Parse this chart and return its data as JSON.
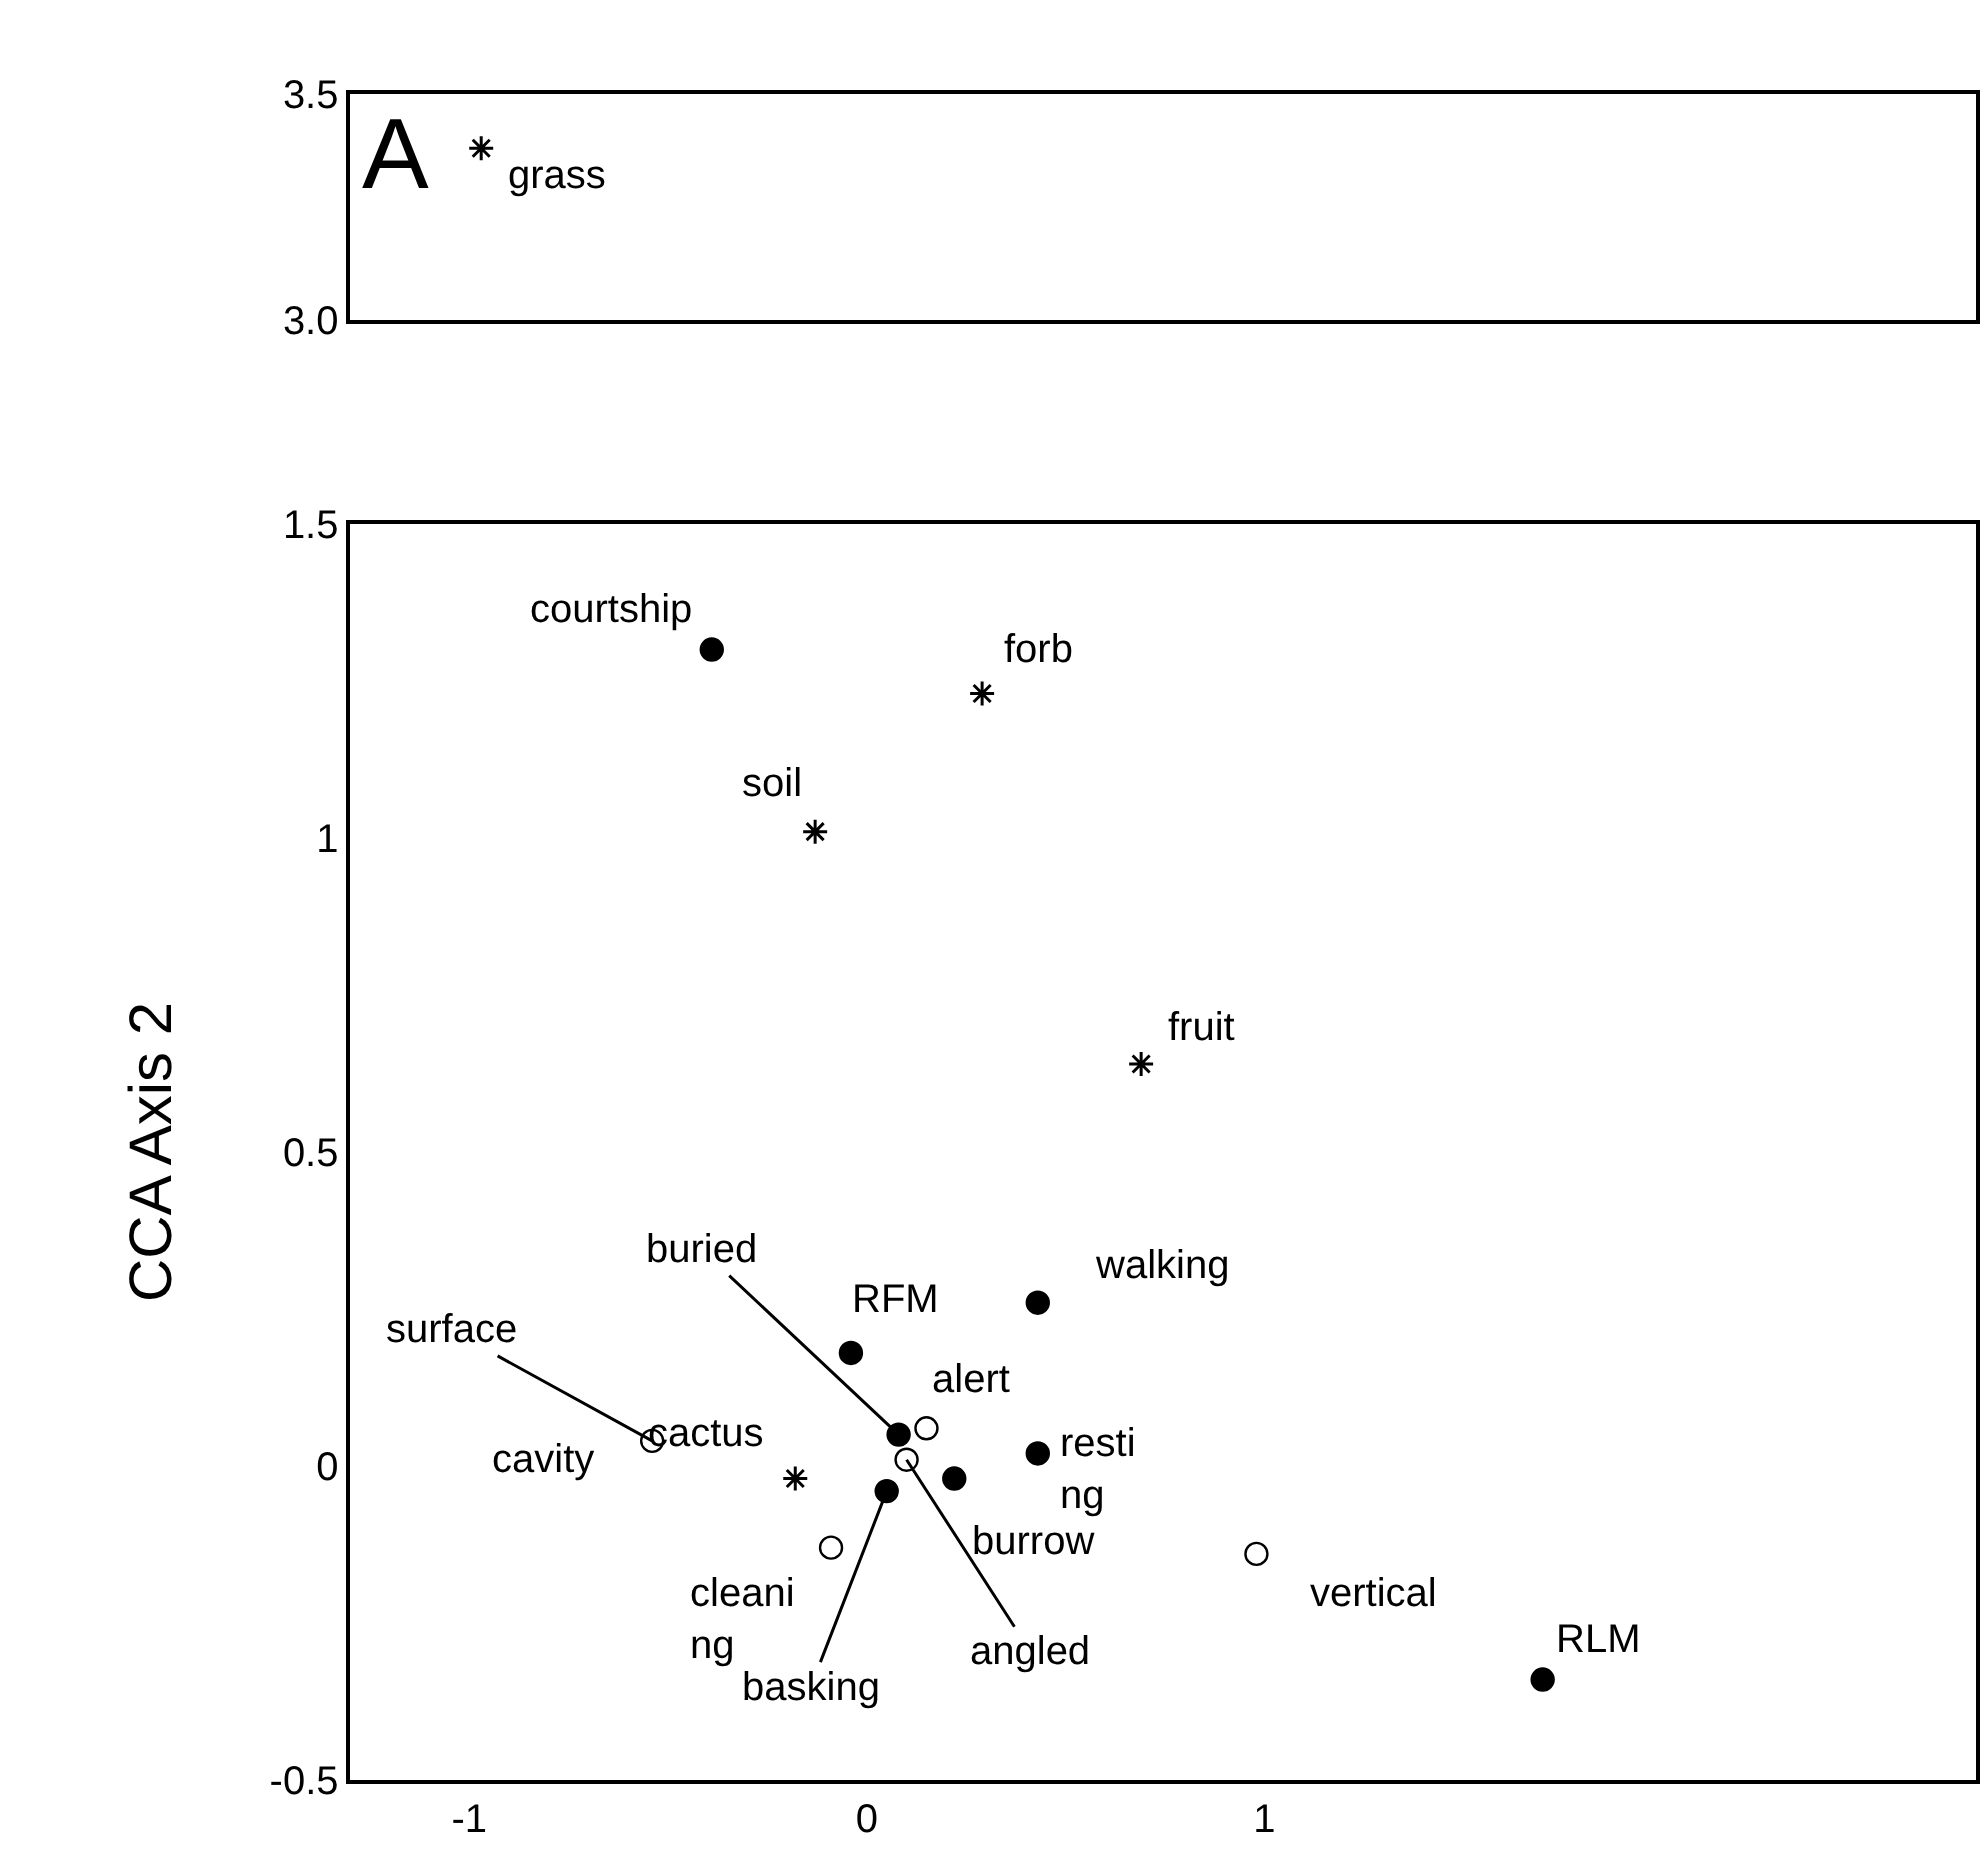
{
  "chart_data": [
    {
      "type": "scatter",
      "xlim": [
        -1.3,
        2.79
      ],
      "ylim": [
        3.0,
        3.5
      ],
      "yticks": [
        {
          "value": 3.0,
          "label": "3.0"
        },
        3.5
      ],
      "tick_labels": "y",
      "series": [
        {
          "color": "#000000",
          "marker": "cross",
          "x": [
            -0.97
          ],
          "values": [
            3.38
          ]
        }
      ],
      "annotations": [
        "A",
        {
          "text": "grass",
          "x": -0.97,
          "y": 3.38
        }
      ]
    },
    {
      "type": "scatter",
      "xlim": [
        -1.3,
        2.79
      ],
      "xticks": [
        -1,
        0,
        1
      ],
      "ylim": [
        -0.5,
        1.5
      ],
      "yticks": [
        -0.5,
        0,
        0.5,
        1,
        1.5
      ],
      "ylabel": "CCA Axis 2",
      "series": [
        {
          "color": "#000000",
          "marker": "circle",
          "x": [
            -0.39,
            0.43,
            -0.04,
            0.08,
            0.43,
            0.22,
            0.05,
            1.7
          ],
          "values": [
            1.3,
            0.26,
            0.18,
            0.05,
            0.02,
            -0.02,
            -0.04,
            -0.34
          ]
        },
        {
          "color": "#ffffff",
          "marker": "circle",
          "x": [
            -0.54,
            0.15,
            0.1,
            -0.09,
            0.98
          ],
          "values": [
            0.04,
            0.06,
            0.01,
            -0.13,
            -0.14
          ]
        },
        {
          "color": "#000000",
          "marker": "cross",
          "x": [
            0.29,
            -0.13,
            0.69,
            -0.18
          ],
          "values": [
            1.23,
            1.01,
            0.64,
            -0.02
          ]
        }
      ],
      "annotations": [
        {
          "text": "courtship",
          "x": -0.39,
          "y": 1.3
        },
        {
          "text": "walking",
          "x": 0.43,
          "y": 0.26
        },
        {
          "text": "RFM",
          "x": -0.04,
          "y": 0.18
        },
        {
          "text": "buried",
          "x": 0.08,
          "y": 0.05
        },
        {
          "text": "resti\nng",
          "x": 0.43,
          "y": 0.02
        },
        {
          "text": "burrow",
          "x": 0.22,
          "y": -0.02
        },
        {
          "text": "basking",
          "x": 0.05,
          "y": -0.04
        },
        {
          "text": "RLM",
          "x": 1.7,
          "y": -0.34
        },
        {
          "text": "cavity",
          "x": -0.54,
          "y": 0.04
        },
        {
          "text": "surface",
          "x": -0.54,
          "y": 0.04
        },
        {
          "text": "alert",
          "x": 0.15,
          "y": 0.06
        },
        {
          "text": "angled",
          "x": 0.1,
          "y": 0.01
        },
        {
          "text": "cleani\nng",
          "x": -0.09,
          "y": -0.13
        },
        {
          "text": "vertical",
          "x": 0.98,
          "y": -0.14
        },
        {
          "text": "forb",
          "x": 0.29,
          "y": 1.23
        },
        {
          "text": "soil",
          "x": -0.13,
          "y": 1.01
        },
        {
          "text": "fruit",
          "x": 0.69,
          "y": 0.64
        },
        {
          "text": "cactus",
          "x": -0.18,
          "y": -0.02
        }
      ]
    }
  ]
}
